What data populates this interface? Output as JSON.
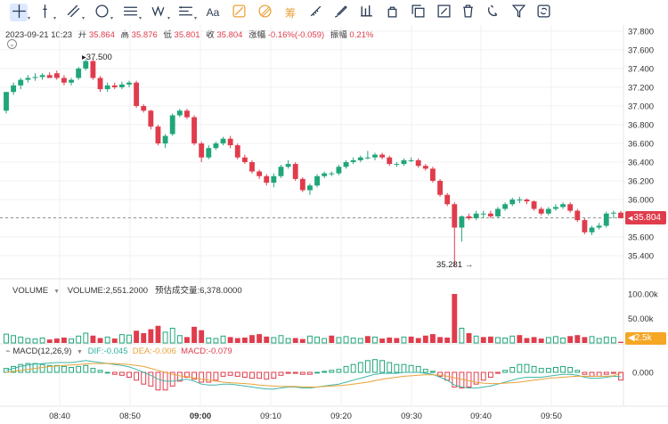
{
  "toolbar": {
    "tools": [
      {
        "name": "crosshair-tool",
        "icon": "crosshair-icon",
        "active": true
      },
      {
        "name": "vertical-line-tool",
        "icon": "vertical-line-icon"
      },
      {
        "name": "parallel-channel-tool",
        "icon": "parallel-lines-icon"
      },
      {
        "name": "circle-tool",
        "icon": "circle-icon"
      },
      {
        "name": "fib-retracement-tool",
        "icon": "fib-lines-icon"
      },
      {
        "name": "wave-tool",
        "icon": "wave-icon",
        "text": "W"
      },
      {
        "name": "ruler-lines-tool",
        "icon": "ruler-lines-icon"
      },
      {
        "name": "text-tool",
        "icon": "text-icon",
        "text": "Aa"
      },
      {
        "name": "price-range-tool",
        "icon": "price-range-icon"
      },
      {
        "name": "date-range-tool",
        "icon": "date-range-icon"
      },
      {
        "name": "chip-tool",
        "icon": "chip-distribution-icon",
        "text": "筹"
      },
      {
        "name": "measure-tool",
        "icon": "measure-icon"
      },
      {
        "name": "brush-tool",
        "icon": "brush-icon"
      },
      {
        "name": "compare-tool",
        "icon": "compare-bars-icon"
      },
      {
        "name": "lock-tool",
        "icon": "lock-icon"
      },
      {
        "name": "copy-tool",
        "icon": "copy-icon"
      },
      {
        "name": "edit-tool",
        "icon": "edit-icon"
      },
      {
        "name": "delete-tool",
        "icon": "trash-icon"
      },
      {
        "name": "magnet-tool",
        "icon": "magnet-icon"
      },
      {
        "name": "filter-tool",
        "icon": "filter-icon"
      },
      {
        "name": "sync-tool",
        "icon": "sync-icon"
      }
    ]
  },
  "ohlc": {
    "datetime": "2023-09-21 10:23",
    "open_label": "开",
    "open": "35.864",
    "high_label": "高",
    "high": "35.876",
    "low_label": "低",
    "low": "35.801",
    "close_label": "收",
    "close": "35.804",
    "change_label": "涨幅",
    "change": "-0.16%(-0.059)",
    "amplitude_label": "振幅",
    "amplitude": "0.21%"
  },
  "price_axis": {
    "ticks": [
      "37.800",
      "37.600",
      "37.400",
      "37.200",
      "37.000",
      "36.800",
      "36.600",
      "36.400",
      "36.200",
      "36.000",
      "35.800",
      "35.600",
      "35.400"
    ],
    "current": "35.804"
  },
  "annotations": {
    "high": "37.500",
    "low": "35.281"
  },
  "volume_panel": {
    "title": "VOLUME",
    "value_label": "VOLUME:2,551.2000",
    "forecast_label": "预估成交量:6,378.0000",
    "axis": [
      "100.00k",
      "50.00k"
    ],
    "current": "2.5k"
  },
  "macd_panel": {
    "title": "MACD(12,26,9)",
    "dif": "DIF:-0.045",
    "dea": "DEA:-0.006",
    "macd": "MACD:-0.079",
    "axis": [
      "0.000"
    ]
  },
  "time_axis": [
    "08:40",
    "08:50",
    "09:00",
    "09:10",
    "09:20",
    "09:30",
    "09:40",
    "09:50"
  ],
  "colors": {
    "up": "#20a67a",
    "down": "#e03c4c",
    "dif": "#3fb6a8",
    "dea": "#e9a23b",
    "grid": "#f0f0f0"
  },
  "chart_data": [
    {
      "type": "candlestick",
      "title": "",
      "ylim": [
        35.2,
        37.9
      ],
      "x": [
        "08:35",
        "08:36",
        "08:37",
        "08:38",
        "08:39",
        "08:40",
        "08:41",
        "08:42",
        "08:43",
        "08:44",
        "08:45",
        "08:46",
        "08:47",
        "08:48",
        "08:49",
        "08:50",
        "08:51",
        "08:52",
        "08:53",
        "08:54",
        "08:55",
        "08:56",
        "08:57",
        "08:58",
        "08:59",
        "09:00",
        "09:01",
        "09:02",
        "09:03",
        "09:04",
        "09:05",
        "09:06",
        "09:07",
        "09:08",
        "09:09",
        "09:10",
        "09:11",
        "09:12",
        "09:13",
        "09:14",
        "09:15",
        "09:16",
        "09:17",
        "09:18",
        "09:19",
        "09:20",
        "09:21",
        "09:22",
        "09:23",
        "09:24",
        "09:25",
        "09:26",
        "09:27",
        "09:28",
        "09:29",
        "09:30",
        "09:31",
        "09:32",
        "09:33",
        "09:34",
        "09:35",
        "09:36",
        "09:37",
        "09:38",
        "09:39",
        "09:40",
        "09:41",
        "09:42",
        "09:43",
        "09:44",
        "09:45",
        "09:46",
        "09:47",
        "09:48",
        "09:49",
        "09:50",
        "09:51",
        "09:52",
        "09:53",
        "09:54",
        "09:55",
        "09:56",
        "09:57",
        "09:58",
        "09:59",
        "10:00"
      ],
      "open": [
        36.95,
        37.15,
        37.22,
        37.28,
        37.3,
        37.31,
        37.33,
        37.35,
        37.3,
        37.25,
        37.3,
        37.4,
        37.48,
        37.3,
        37.18,
        37.22,
        37.2,
        37.23,
        37.25,
        37.0,
        36.95,
        36.78,
        36.6,
        36.7,
        36.9,
        36.95,
        36.88,
        36.6,
        36.45,
        36.55,
        36.6,
        36.65,
        36.58,
        36.45,
        36.4,
        36.3,
        36.25,
        36.18,
        36.25,
        36.35,
        36.38,
        36.22,
        36.1,
        36.15,
        36.25,
        36.28,
        36.28,
        36.35,
        36.4,
        36.42,
        36.45,
        36.45,
        36.48,
        36.45,
        36.38,
        36.38,
        36.42,
        36.42,
        36.36,
        36.33,
        36.2,
        36.05,
        35.95,
        35.7,
        35.82,
        35.8,
        35.85,
        35.85,
        35.82,
        35.9,
        35.95,
        36.0,
        36.0,
        35.98,
        35.9,
        35.85,
        35.9,
        35.92,
        35.95,
        35.88,
        35.78,
        35.65,
        35.7,
        35.72,
        35.85,
        35.86
      ],
      "high": [
        37.15,
        37.25,
        37.3,
        37.33,
        37.35,
        37.35,
        37.36,
        37.38,
        37.33,
        37.3,
        37.42,
        37.5,
        37.5,
        37.32,
        37.25,
        37.25,
        37.26,
        37.27,
        37.27,
        37.02,
        36.96,
        36.8,
        36.7,
        36.92,
        36.97,
        36.97,
        36.9,
        36.62,
        36.58,
        36.62,
        36.67,
        36.68,
        36.6,
        36.48,
        36.42,
        36.32,
        36.27,
        36.28,
        36.37,
        36.42,
        36.4,
        36.24,
        36.17,
        36.27,
        36.3,
        36.3,
        36.37,
        36.42,
        36.45,
        36.47,
        36.52,
        36.5,
        36.5,
        36.47,
        36.4,
        36.44,
        36.45,
        36.44,
        36.38,
        36.35,
        36.22,
        36.07,
        35.97,
        35.83,
        35.85,
        35.88,
        35.88,
        35.88,
        35.92,
        35.97,
        36.02,
        36.03,
        36.01,
        35.99,
        35.92,
        35.92,
        35.95,
        35.97,
        35.97,
        35.9,
        35.8,
        35.72,
        35.75,
        35.87,
        35.88,
        35.88
      ],
      "low": [
        36.92,
        37.12,
        37.18,
        37.25,
        37.27,
        37.28,
        37.3,
        37.28,
        37.22,
        37.22,
        37.28,
        37.38,
        37.28,
        37.15,
        37.15,
        37.18,
        37.18,
        37.2,
        36.98,
        36.93,
        36.75,
        36.58,
        36.55,
        36.68,
        36.88,
        36.86,
        36.58,
        36.4,
        36.43,
        36.53,
        36.58,
        36.55,
        36.43,
        36.38,
        36.28,
        36.22,
        36.15,
        36.13,
        36.23,
        36.33,
        36.2,
        36.08,
        36.05,
        36.13,
        36.23,
        36.25,
        36.26,
        36.33,
        36.38,
        36.4,
        36.43,
        36.42,
        36.43,
        36.36,
        36.35,
        36.36,
        36.4,
        36.34,
        36.31,
        36.18,
        36.03,
        35.93,
        35.28,
        35.55,
        35.78,
        35.78,
        35.8,
        35.8,
        35.8,
        35.88,
        35.93,
        35.96,
        35.95,
        35.88,
        35.83,
        35.83,
        35.88,
        35.9,
        35.86,
        35.76,
        35.63,
        35.62,
        35.68,
        35.7,
        35.8,
        35.8
      ],
      "close": [
        37.15,
        37.22,
        37.28,
        37.3,
        37.31,
        37.33,
        37.3,
        37.3,
        37.25,
        37.28,
        37.4,
        37.48,
        37.3,
        37.18,
        37.22,
        37.2,
        37.23,
        37.25,
        37.0,
        36.95,
        36.78,
        36.6,
        36.68,
        36.9,
        36.95,
        36.88,
        36.6,
        36.45,
        36.55,
        36.6,
        36.65,
        36.58,
        36.45,
        36.4,
        36.3,
        36.25,
        36.18,
        36.25,
        36.35,
        36.38,
        36.22,
        36.1,
        36.15,
        36.25,
        36.28,
        36.28,
        36.35,
        36.4,
        36.42,
        36.45,
        36.45,
        36.48,
        36.45,
        36.38,
        36.38,
        36.42,
        36.42,
        36.36,
        36.33,
        36.2,
        36.05,
        35.95,
        35.7,
        35.82,
        35.8,
        35.85,
        35.85,
        35.82,
        35.9,
        35.95,
        36.0,
        36.0,
        35.98,
        35.9,
        35.85,
        35.9,
        35.92,
        35.95,
        35.88,
        35.78,
        35.65,
        35.7,
        35.72,
        35.85,
        35.86,
        35.8
      ]
    },
    {
      "type": "bar",
      "title": "VOLUME",
      "ylim": [
        0,
        110000
      ],
      "values": [
        18000,
        15000,
        12000,
        9000,
        8000,
        10000,
        7000,
        9000,
        11000,
        8000,
        14000,
        20000,
        15000,
        10000,
        12000,
        9000,
        17000,
        16000,
        25000,
        20000,
        28000,
        35000,
        22000,
        30000,
        15000,
        12000,
        33000,
        26000,
        10000,
        9000,
        14000,
        12000,
        10000,
        11000,
        16000,
        18000,
        13000,
        11000,
        15000,
        9000,
        10000,
        8000,
        14000,
        12000,
        9000,
        15000,
        11000,
        13000,
        10000,
        9000,
        14000,
        12000,
        9000,
        11000,
        10000,
        12000,
        13000,
        10000,
        15000,
        18000,
        12000,
        11000,
        100000,
        30000,
        20000,
        14000,
        12000,
        13000,
        11000,
        10000,
        14000,
        16000,
        10000,
        12000,
        9000,
        11000,
        13000,
        10000,
        14000,
        16000,
        12000,
        13000,
        9000,
        12000,
        11000,
        2500
      ],
      "up": [
        1,
        1,
        1,
        1,
        1,
        1,
        0,
        0,
        0,
        1,
        1,
        1,
        0,
        0,
        1,
        0,
        1,
        1,
        0,
        0,
        0,
        0,
        1,
        1,
        1,
        0,
        0,
        0,
        1,
        1,
        1,
        0,
        0,
        0,
        0,
        0,
        0,
        1,
        1,
        1,
        0,
        0,
        1,
        1,
        1,
        0,
        1,
        1,
        1,
        1,
        0,
        1,
        0,
        0,
        0,
        1,
        0,
        0,
        0,
        0,
        0,
        0,
        0,
        1,
        0,
        1,
        0,
        0,
        1,
        1,
        1,
        0,
        0,
        0,
        0,
        1,
        1,
        1,
        0,
        0,
        0,
        1,
        1,
        1,
        1,
        0
      ]
    },
    {
      "type": "line",
      "title": "MACD(12,26,9)",
      "series": [
        {
          "name": "DIF",
          "values": [
            0.02,
            0.04,
            0.06,
            0.075,
            0.085,
            0.09,
            0.095,
            0.1,
            0.1,
            0.1,
            0.11,
            0.12,
            0.11,
            0.1,
            0.09,
            0.08,
            0.07,
            0.055,
            0.03,
            0.0,
            -0.03,
            -0.07,
            -0.09,
            -0.09,
            -0.08,
            -0.07,
            -0.09,
            -0.12,
            -0.13,
            -0.13,
            -0.12,
            -0.12,
            -0.13,
            -0.14,
            -0.15,
            -0.16,
            -0.17,
            -0.17,
            -0.16,
            -0.15,
            -0.15,
            -0.16,
            -0.16,
            -0.15,
            -0.14,
            -0.13,
            -0.12,
            -0.1,
            -0.08,
            -0.06,
            -0.04,
            -0.02,
            -0.01,
            -0.01,
            -0.01,
            0.0,
            0.0,
            0.0,
            -0.01,
            -0.02,
            -0.05,
            -0.08,
            -0.13,
            -0.15,
            -0.16,
            -0.16,
            -0.15,
            -0.14,
            -0.12,
            -0.1,
            -0.08,
            -0.06,
            -0.05,
            -0.05,
            -0.05,
            -0.04,
            -0.03,
            -0.02,
            -0.02,
            -0.03,
            -0.05,
            -0.06,
            -0.06,
            -0.05,
            -0.04,
            -0.045
          ]
        },
        {
          "name": "DEA",
          "values": [
            0.0,
            0.01,
            0.02,
            0.03,
            0.04,
            0.05,
            0.06,
            0.065,
            0.07,
            0.075,
            0.08,
            0.085,
            0.09,
            0.09,
            0.09,
            0.09,
            0.085,
            0.08,
            0.07,
            0.06,
            0.04,
            0.02,
            0.0,
            -0.02,
            -0.035,
            -0.045,
            -0.055,
            -0.07,
            -0.08,
            -0.09,
            -0.1,
            -0.105,
            -0.11,
            -0.115,
            -0.12,
            -0.13,
            -0.135,
            -0.14,
            -0.145,
            -0.145,
            -0.145,
            -0.15,
            -0.15,
            -0.15,
            -0.145,
            -0.14,
            -0.135,
            -0.13,
            -0.12,
            -0.11,
            -0.1,
            -0.085,
            -0.07,
            -0.06,
            -0.05,
            -0.04,
            -0.035,
            -0.03,
            -0.025,
            -0.025,
            -0.03,
            -0.04,
            -0.055,
            -0.07,
            -0.085,
            -0.1,
            -0.11,
            -0.115,
            -0.115,
            -0.11,
            -0.105,
            -0.1,
            -0.09,
            -0.08,
            -0.07,
            -0.06,
            -0.055,
            -0.05,
            -0.045,
            -0.04,
            -0.04,
            -0.04,
            -0.04,
            -0.04,
            -0.035,
            -0.006
          ]
        },
        {
          "name": "MACD",
          "values": [
            0.04,
            0.06,
            0.08,
            0.09,
            0.09,
            0.08,
            0.07,
            0.07,
            0.06,
            0.05,
            0.06,
            0.07,
            0.04,
            0.02,
            0.0,
            -0.02,
            -0.03,
            -0.05,
            -0.08,
            -0.12,
            -0.14,
            -0.18,
            -0.18,
            -0.14,
            -0.09,
            -0.05,
            -0.07,
            -0.1,
            -0.1,
            -0.08,
            -0.04,
            -0.03,
            -0.04,
            -0.05,
            -0.06,
            -0.06,
            -0.07,
            -0.06,
            -0.03,
            -0.01,
            -0.01,
            -0.02,
            -0.02,
            0.0,
            0.01,
            0.02,
            0.03,
            0.06,
            0.08,
            0.1,
            0.12,
            0.13,
            0.12,
            0.1,
            0.08,
            0.08,
            0.07,
            0.06,
            0.03,
            0.01,
            -0.04,
            -0.08,
            -0.15,
            -0.16,
            -0.15,
            -0.12,
            -0.08,
            -0.05,
            -0.01,
            0.02,
            0.05,
            0.08,
            0.08,
            0.06,
            0.04,
            0.04,
            0.05,
            0.06,
            0.05,
            0.02,
            -0.02,
            -0.04,
            -0.04,
            -0.02,
            -0.01,
            -0.079
          ]
        }
      ]
    }
  ]
}
